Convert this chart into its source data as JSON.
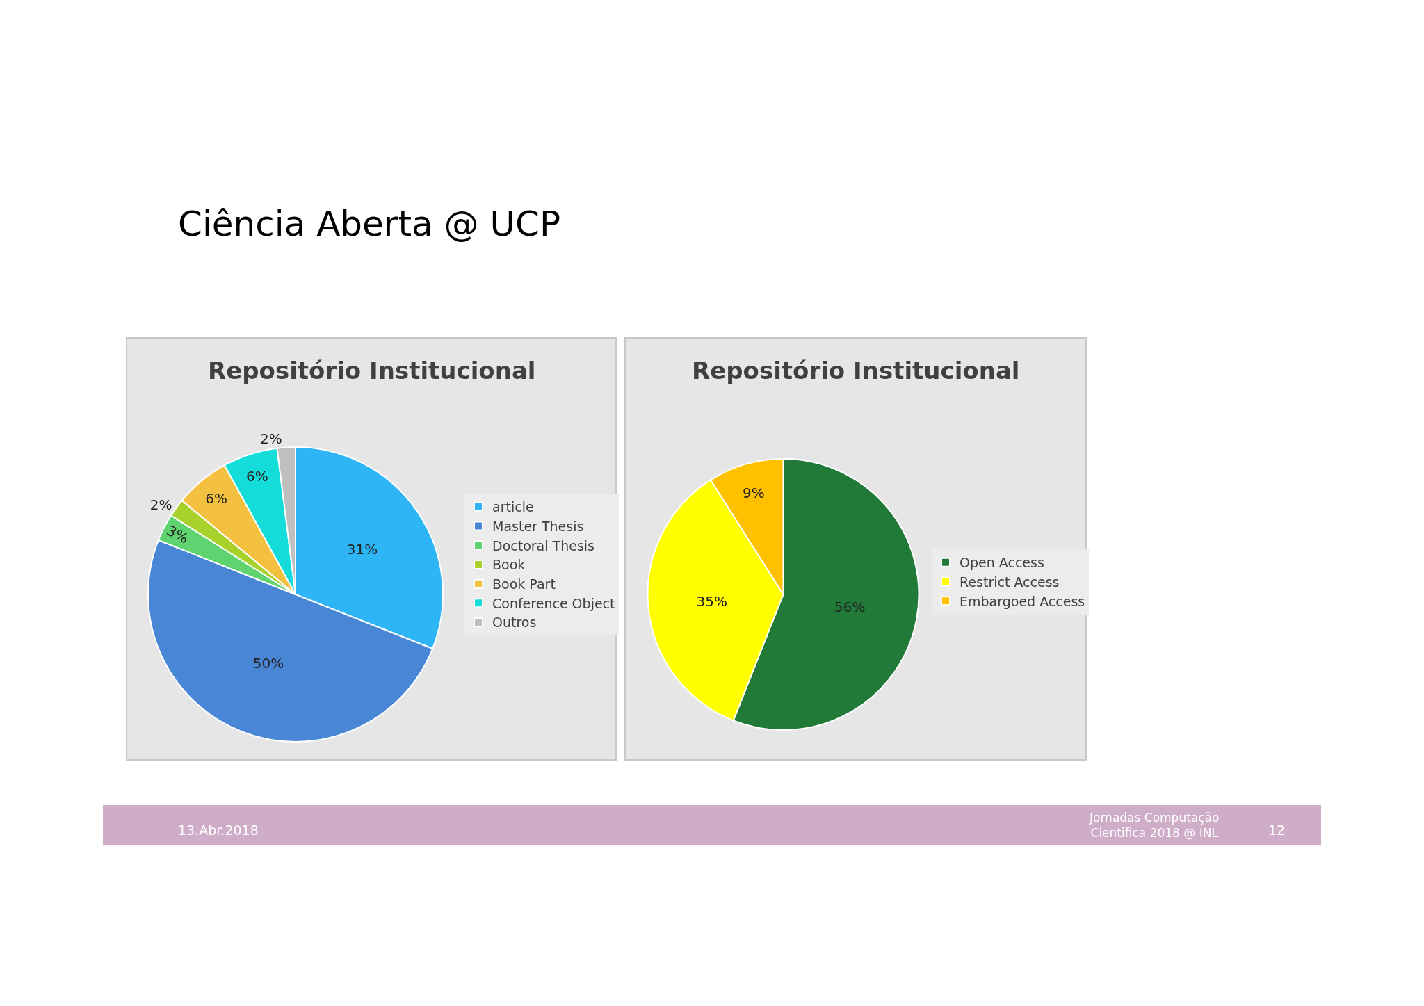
{
  "chart_data": [
    {
      "type": "pie",
      "title": "Repositório Institucional",
      "categories": [
        "article",
        "Master Thesis",
        "Doctoral Thesis",
        "Book",
        "Book Part",
        "Conference Object",
        "Outros"
      ],
      "values": [
        31,
        50,
        3,
        2,
        6,
        6,
        2
      ],
      "colors": [
        "#2db5f5",
        "#4a86d6",
        "#5ed36f",
        "#a9d12c",
        "#f4c040",
        "#14dcd8",
        "#bfbfbf"
      ],
      "value_labels": [
        "31%",
        "50%",
        "3%",
        "2%",
        "6%",
        "6%",
        "2%"
      ],
      "legend": "right",
      "annotations": [
        "Ciência Aberta @ UCP",
        "13.Abr.2018",
        "Jornadas Computação\nCientifica 2018 @ INL",
        "12"
      ]
    },
    {
      "type": "pie",
      "title": "Repositório Institucional",
      "categories": [
        "Open Access",
        "Restrict Access",
        "Embargoed Access"
      ],
      "values": [
        56,
        35,
        9
      ],
      "colors": [
        "#217a38",
        "#ffff00",
        "#ffc000"
      ],
      "value_labels": [
        "56%",
        "35%",
        "9%"
      ],
      "legend": "right"
    }
  ]
}
